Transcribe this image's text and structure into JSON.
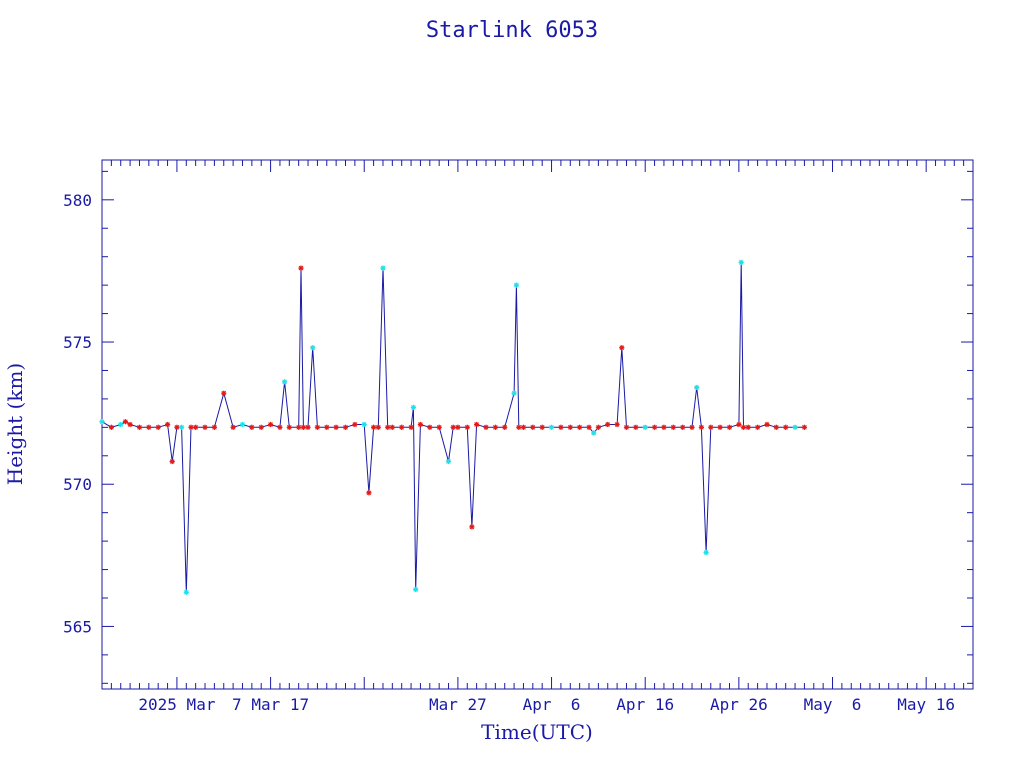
{
  "chart_data": {
    "type": "line",
    "title": "Starlink 6053",
    "xlabel": "Time(UTC)",
    "ylabel": "Height (km)",
    "x_unit": "date",
    "xlim": [
      "2025-02-17",
      "2025-05-21"
    ],
    "ylim": [
      562.8,
      581.4
    ],
    "y_ticks": [
      565,
      570,
      575,
      580
    ],
    "y_tick_labels": [
      "565",
      "570",
      "575",
      "580"
    ],
    "x_tick_labels": [
      {
        "date": "2025-02-25",
        "label": "2025 Mar"
      },
      {
        "date": "2025-03-07",
        "label": "7 Mar 17"
      },
      {
        "date": "2025-03-27",
        "label": "Mar 27"
      },
      {
        "date": "2025-04-06",
        "label": "Apr  6"
      },
      {
        "date": "2025-04-16",
        "label": "Apr 16"
      },
      {
        "date": "2025-04-26",
        "label": "Apr 26"
      },
      {
        "date": "2025-05-06",
        "label": "May  6"
      },
      {
        "date": "2025-05-16",
        "label": "May 16"
      }
    ],
    "x_major_ticks": [
      "2025-02-25",
      "2025-03-07",
      "2025-03-17",
      "2025-03-27",
      "2025-04-06",
      "2025-04-16",
      "2025-04-26",
      "2025-05-06",
      "2025-05-16"
    ],
    "grid": false,
    "colors": {
      "frame": "#1a1aa6",
      "line": "#1a1aa6",
      "marker_primary": "#e31a1a",
      "marker_secondary": "#20e0e8"
    },
    "series": [
      {
        "values": [
          {
            "x": "2025-02-17",
            "y": 572.2,
            "m": "c"
          },
          {
            "x": "2025-02-18",
            "y": 572.0,
            "m": "r"
          },
          {
            "x": "2025-02-19",
            "y": 572.1,
            "m": "c"
          },
          {
            "x": "2025-02-19T12",
            "y": 572.2,
            "m": "r"
          },
          {
            "x": "2025-02-20",
            "y": 572.1,
            "m": "r"
          },
          {
            "x": "2025-02-21",
            "y": 572.0,
            "m": "r"
          },
          {
            "x": "2025-02-22",
            "y": 572.0,
            "m": "r"
          },
          {
            "x": "2025-02-23",
            "y": 572.0,
            "m": "r"
          },
          {
            "x": "2025-02-24",
            "y": 572.1,
            "m": "r"
          },
          {
            "x": "2025-02-24T12",
            "y": 570.8,
            "m": "r"
          },
          {
            "x": "2025-02-25",
            "y": 572.0,
            "m": "r"
          },
          {
            "x": "2025-02-25T12",
            "y": 572.0,
            "m": "c"
          },
          {
            "x": "2025-02-26",
            "y": 566.2,
            "m": "c"
          },
          {
            "x": "2025-02-26T12",
            "y": 572.0,
            "m": "r"
          },
          {
            "x": "2025-02-27",
            "y": 572.0,
            "m": "r"
          },
          {
            "x": "2025-02-28",
            "y": 572.0,
            "m": "r"
          },
          {
            "x": "2025-03-01",
            "y": 572.0,
            "m": "r"
          },
          {
            "x": "2025-03-02",
            "y": 573.2,
            "m": "r"
          },
          {
            "x": "2025-03-03",
            "y": 572.0,
            "m": "r"
          },
          {
            "x": "2025-03-04",
            "y": 572.1,
            "m": "c"
          },
          {
            "x": "2025-03-05",
            "y": 572.0,
            "m": "r"
          },
          {
            "x": "2025-03-06",
            "y": 572.0,
            "m": "r"
          },
          {
            "x": "2025-03-07",
            "y": 572.1,
            "m": "r"
          },
          {
            "x": "2025-03-08",
            "y": 572.0,
            "m": "r"
          },
          {
            "x": "2025-03-08T12",
            "y": 573.6,
            "m": "c"
          },
          {
            "x": "2025-03-09",
            "y": 572.0,
            "m": "r"
          },
          {
            "x": "2025-03-10",
            "y": 572.0,
            "m": "r"
          },
          {
            "x": "2025-03-10T06",
            "y": 577.6,
            "m": "r"
          },
          {
            "x": "2025-03-10T12",
            "y": 572.0,
            "m": "r"
          },
          {
            "x": "2025-03-11",
            "y": 572.0,
            "m": "r"
          },
          {
            "x": "2025-03-11T12",
            "y": 574.8,
            "m": "c"
          },
          {
            "x": "2025-03-12",
            "y": 572.0,
            "m": "r"
          },
          {
            "x": "2025-03-13",
            "y": 572.0,
            "m": "r"
          },
          {
            "x": "2025-03-14",
            "y": 572.0,
            "m": "r"
          },
          {
            "x": "2025-03-15",
            "y": 572.0,
            "m": "r"
          },
          {
            "x": "2025-03-16",
            "y": 572.1,
            "m": "r"
          },
          {
            "x": "2025-03-17",
            "y": 572.1,
            "m": "c"
          },
          {
            "x": "2025-03-17T12",
            "y": 569.7,
            "m": "r"
          },
          {
            "x": "2025-03-18",
            "y": 572.0,
            "m": "r"
          },
          {
            "x": "2025-03-18T12",
            "y": 572.0,
            "m": "r"
          },
          {
            "x": "2025-03-19",
            "y": 577.6,
            "m": "c"
          },
          {
            "x": "2025-03-19T12",
            "y": 572.0,
            "m": "r"
          },
          {
            "x": "2025-03-20",
            "y": 572.0,
            "m": "r"
          },
          {
            "x": "2025-03-21",
            "y": 572.0,
            "m": "r"
          },
          {
            "x": "2025-03-22",
            "y": 572.0,
            "m": "r"
          },
          {
            "x": "2025-03-22T06",
            "y": 572.7,
            "m": "c"
          },
          {
            "x": "2025-03-22T12",
            "y": 566.3,
            "m": "c"
          },
          {
            "x": "2025-03-23",
            "y": 572.1,
            "m": "r"
          },
          {
            "x": "2025-03-24",
            "y": 572.0,
            "m": "r"
          },
          {
            "x": "2025-03-25",
            "y": 572.0,
            "m": "r"
          },
          {
            "x": "2025-03-26",
            "y": 570.8,
            "m": "c"
          },
          {
            "x": "2025-03-26T12",
            "y": 572.0,
            "m": "r"
          },
          {
            "x": "2025-03-27",
            "y": 572.0,
            "m": "r"
          },
          {
            "x": "2025-03-28",
            "y": 572.0,
            "m": "r"
          },
          {
            "x": "2025-03-28T12",
            "y": 568.5,
            "m": "r"
          },
          {
            "x": "2025-03-29",
            "y": 572.1,
            "m": "r"
          },
          {
            "x": "2025-03-30",
            "y": 572.0,
            "m": "r"
          },
          {
            "x": "2025-03-31",
            "y": 572.0,
            "m": "r"
          },
          {
            "x": "2025-04-01",
            "y": 572.0,
            "m": "r"
          },
          {
            "x": "2025-04-02",
            "y": 573.2,
            "m": "c"
          },
          {
            "x": "2025-04-02T06",
            "y": 577.0,
            "m": "c"
          },
          {
            "x": "2025-04-02T12",
            "y": 572.0,
            "m": "r"
          },
          {
            "x": "2025-04-03",
            "y": 572.0,
            "m": "r"
          },
          {
            "x": "2025-04-04",
            "y": 572.0,
            "m": "r"
          },
          {
            "x": "2025-04-05",
            "y": 572.0,
            "m": "r"
          },
          {
            "x": "2025-04-06",
            "y": 572.0,
            "m": "c"
          },
          {
            "x": "2025-04-07",
            "y": 572.0,
            "m": "r"
          },
          {
            "x": "2025-04-08",
            "y": 572.0,
            "m": "r"
          },
          {
            "x": "2025-04-09",
            "y": 572.0,
            "m": "r"
          },
          {
            "x": "2025-04-10",
            "y": 572.0,
            "m": "r"
          },
          {
            "x": "2025-04-10T12",
            "y": 571.8,
            "m": "c"
          },
          {
            "x": "2025-04-11",
            "y": 572.0,
            "m": "r"
          },
          {
            "x": "2025-04-12",
            "y": 572.1,
            "m": "r"
          },
          {
            "x": "2025-04-13",
            "y": 572.1,
            "m": "r"
          },
          {
            "x": "2025-04-13T12",
            "y": 574.8,
            "m": "r"
          },
          {
            "x": "2025-04-14",
            "y": 572.0,
            "m": "r"
          },
          {
            "x": "2025-04-15",
            "y": 572.0,
            "m": "r"
          },
          {
            "x": "2025-04-16",
            "y": 572.0,
            "m": "c"
          },
          {
            "x": "2025-04-17",
            "y": 572.0,
            "m": "r"
          },
          {
            "x": "2025-04-18",
            "y": 572.0,
            "m": "r"
          },
          {
            "x": "2025-04-19",
            "y": 572.0,
            "m": "r"
          },
          {
            "x": "2025-04-20",
            "y": 572.0,
            "m": "r"
          },
          {
            "x": "2025-04-21",
            "y": 572.0,
            "m": "r"
          },
          {
            "x": "2025-04-21T12",
            "y": 573.4,
            "m": "c"
          },
          {
            "x": "2025-04-22",
            "y": 572.0,
            "m": "r"
          },
          {
            "x": "2025-04-22T12",
            "y": 567.6,
            "m": "c"
          },
          {
            "x": "2025-04-23",
            "y": 572.0,
            "m": "r"
          },
          {
            "x": "2025-04-24",
            "y": 572.0,
            "m": "r"
          },
          {
            "x": "2025-04-25",
            "y": 572.0,
            "m": "r"
          },
          {
            "x": "2025-04-26",
            "y": 572.1,
            "m": "r"
          },
          {
            "x": "2025-04-26T06",
            "y": 577.8,
            "m": "c"
          },
          {
            "x": "2025-04-26T12",
            "y": 572.0,
            "m": "r"
          },
          {
            "x": "2025-04-27",
            "y": 572.0,
            "m": "r"
          },
          {
            "x": "2025-04-28",
            "y": 572.0,
            "m": "r"
          },
          {
            "x": "2025-04-29",
            "y": 572.1,
            "m": "r"
          },
          {
            "x": "2025-04-30",
            "y": 572.0,
            "m": "r"
          },
          {
            "x": "2025-05-01",
            "y": 572.0,
            "m": "r"
          },
          {
            "x": "2025-05-02",
            "y": 572.0,
            "m": "c"
          },
          {
            "x": "2025-05-03",
            "y": 572.0,
            "m": "r"
          }
        ]
      }
    ]
  }
}
